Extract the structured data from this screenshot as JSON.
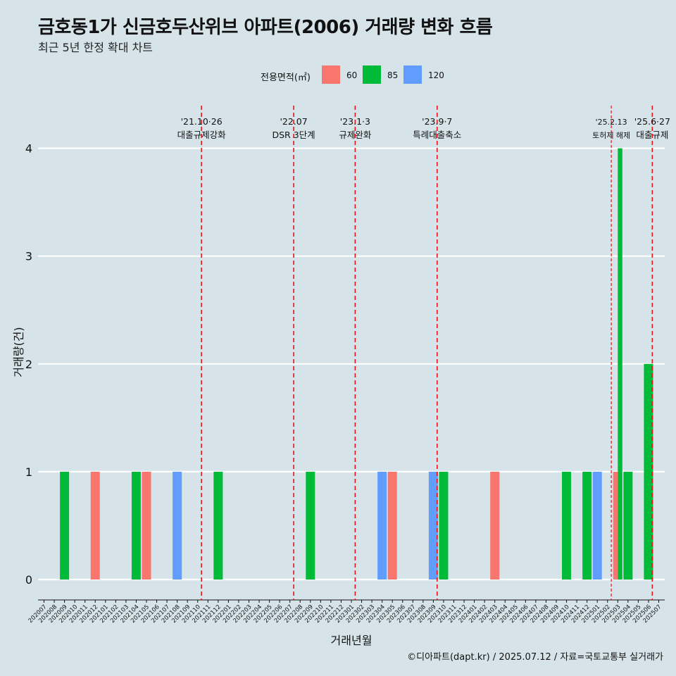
{
  "title": "금호동1가 신금호두산위브 아파트(2006) 거래량 변화 흐름",
  "subtitle": "최근 5년 한정 확대 차트",
  "caption": "©디아파트(dapt.kr) / 2025.07.12 / 자료=국토교통부 실거래가",
  "legend": {
    "title": "전용면적(㎡)",
    "items": [
      {
        "label": "60",
        "color": "#f8766d"
      },
      {
        "label": "85",
        "color": "#00ba38"
      },
      {
        "label": "120",
        "color": "#619cff"
      }
    ]
  },
  "chart_data": {
    "type": "bar",
    "xlabel": "거래년월",
    "ylabel": "거래량(건)",
    "ylim": [
      0,
      4
    ],
    "y_ticks": [
      0,
      1,
      2,
      3,
      4
    ],
    "categories": [
      "202007",
      "202008",
      "202009",
      "202010",
      "202011",
      "202012",
      "202101",
      "202102",
      "202103",
      "202104",
      "202105",
      "202106",
      "202107",
      "202108",
      "202109",
      "202110",
      "202111",
      "202112",
      "202201",
      "202202",
      "202203",
      "202204",
      "202205",
      "202206",
      "202207",
      "202208",
      "202209",
      "202210",
      "202211",
      "202212",
      "202301",
      "202302",
      "202303",
      "202304",
      "202305",
      "202306",
      "202307",
      "202308",
      "202309",
      "202310",
      "202311",
      "202312",
      "202401",
      "202402",
      "202403",
      "202404",
      "202405",
      "202406",
      "202407",
      "202408",
      "202409",
      "202410",
      "202411",
      "202412",
      "202501",
      "202502",
      "202503",
      "202504",
      "202505",
      "202506",
      "202507"
    ],
    "bars": [
      {
        "month": "202009",
        "area": "85",
        "value": 1
      },
      {
        "month": "202012",
        "area": "60",
        "value": 1
      },
      {
        "month": "202104",
        "area": "85",
        "value": 1
      },
      {
        "month": "202105",
        "area": "60",
        "value": 1
      },
      {
        "month": "202108",
        "area": "120",
        "value": 1
      },
      {
        "month": "202112",
        "area": "85",
        "value": 1
      },
      {
        "month": "202209",
        "area": "85",
        "value": 1
      },
      {
        "month": "202304",
        "area": "120",
        "value": 1
      },
      {
        "month": "202305",
        "area": "60",
        "value": 1
      },
      {
        "month": "202309",
        "area": "120",
        "value": 1
      },
      {
        "month": "202310",
        "area": "85",
        "value": 1
      },
      {
        "month": "202403",
        "area": "60",
        "value": 1
      },
      {
        "month": "202410",
        "area": "85",
        "value": 1
      },
      {
        "month": "202412",
        "area": "85",
        "value": 1
      },
      {
        "month": "202501",
        "area": "120",
        "value": 1
      },
      {
        "month": "202503",
        "area": "60",
        "value": 1
      },
      {
        "month": "202503",
        "area": "85",
        "value": 4
      },
      {
        "month": "202504",
        "area": "85",
        "value": 1
      },
      {
        "month": "202506",
        "area": "85",
        "value": 2
      }
    ],
    "events": [
      {
        "position": 15.37,
        "date": "'21.10·26",
        "label": "대출규제강화",
        "style": "dashed"
      },
      {
        "position": 24.37,
        "date": "'22.07",
        "label": "DSR 3단계",
        "style": "dashed"
      },
      {
        "position": 30.37,
        "date": "'23.1·3",
        "label": "규제완화",
        "style": "dashed"
      },
      {
        "position": 38.37,
        "date": "'23.9·7",
        "label": "특례대출축소",
        "style": "dashed"
      },
      {
        "position": 55.37,
        "date": "'25.2.13",
        "label": "토허제 해제",
        "style": "dotted"
      },
      {
        "position": 59.37,
        "date": "'25.6·27",
        "label": "대출규제",
        "style": "dashed"
      }
    ],
    "grid": true,
    "legend_position": "top"
  }
}
